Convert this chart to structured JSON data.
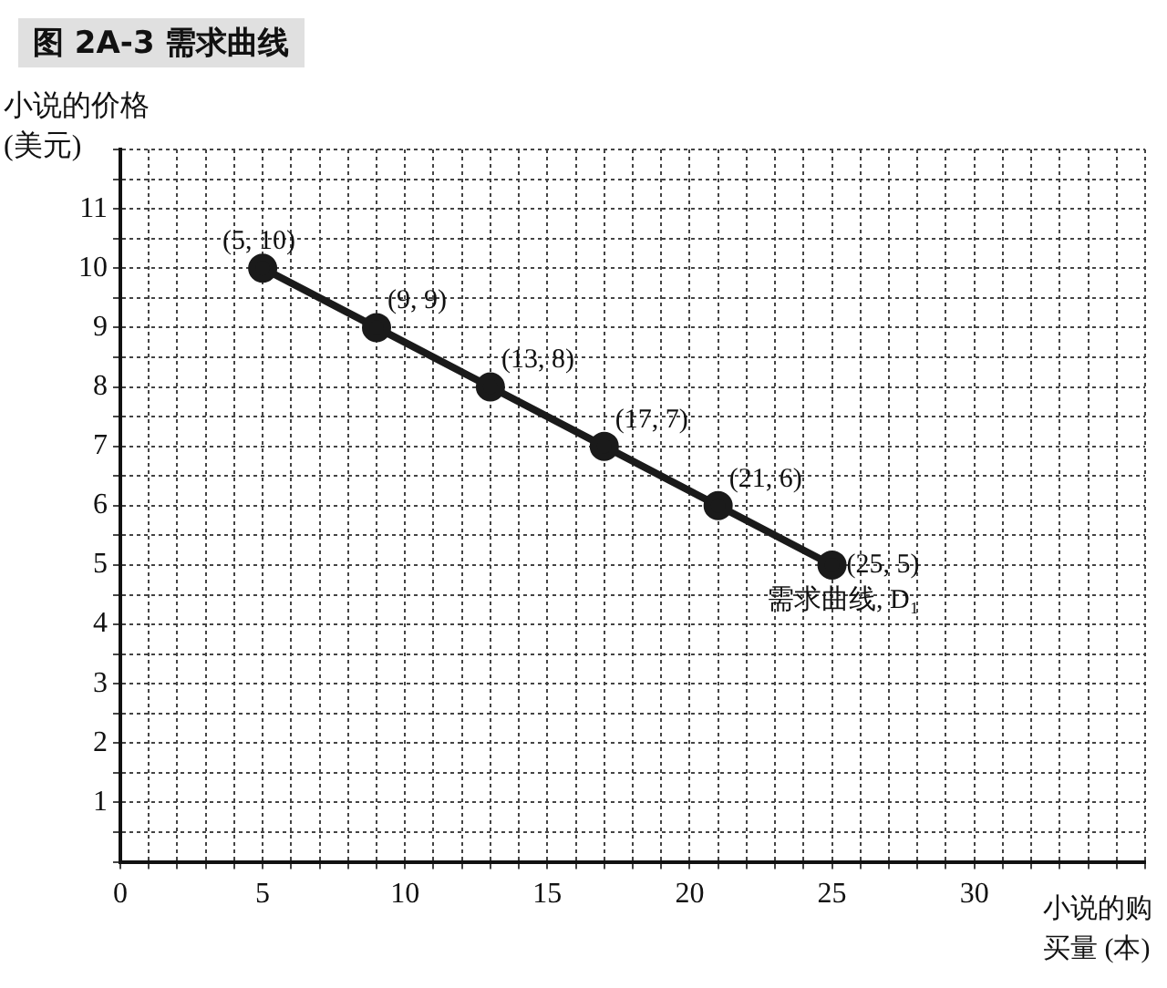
{
  "chart_data": {
    "type": "line",
    "title": "图 2A-3 需求曲线",
    "xlabel": "小说的购买量 (本)",
    "ylabel": "小说的价格 (美元)",
    "x": [
      5,
      9,
      13,
      17,
      21,
      25
    ],
    "series": [
      {
        "name": "需求曲线, D₁",
        "color": "#1a1a1a",
        "values": [
          10,
          9,
          8,
          7,
          6,
          5
        ],
        "value_labels": [
          "(5, 10)",
          "(9, 9)",
          "(13, 8)",
          "(17, 7)",
          "(21, 6)",
          "(25, 5)"
        ]
      }
    ],
    "xlim": [
      0,
      36
    ],
    "xticks": [
      0,
      {
        "value": 1,
        "label": null
      },
      {
        "value": 2,
        "label": null
      },
      {
        "value": 3,
        "label": null
      },
      {
        "value": 4,
        "label": null
      },
      5,
      {
        "value": 6,
        "label": null
      },
      {
        "value": 7,
        "label": null
      },
      {
        "value": 8,
        "label": null
      },
      {
        "value": 9,
        "label": null
      },
      10,
      {
        "value": 11,
        "label": null
      },
      {
        "value": 12,
        "label": null
      },
      {
        "value": 13,
        "label": null
      },
      {
        "value": 14,
        "label": null
      },
      15,
      {
        "value": 16,
        "label": null
      },
      {
        "value": 17,
        "label": null
      },
      {
        "value": 18,
        "label": null
      },
      {
        "value": 19,
        "label": null
      },
      20,
      {
        "value": 21,
        "label": null
      },
      {
        "value": 22,
        "label": null
      },
      {
        "value": 23,
        "label": null
      },
      {
        "value": 24,
        "label": null
      },
      25,
      {
        "value": 26,
        "label": null
      },
      {
        "value": 27,
        "label": null
      },
      {
        "value": 28,
        "label": null
      },
      {
        "value": 29,
        "label": null
      },
      30,
      {
        "value": 31,
        "label": null
      },
      {
        "value": 32,
        "label": null
      },
      {
        "value": 33,
        "label": null
      },
      {
        "value": 34,
        "label": null
      },
      {
        "value": 35,
        "label": null
      },
      {
        "value": 36,
        "label": null
      }
    ],
    "ylim": [
      0,
      12
    ],
    "yticks": [
      {
        "value": 0,
        "label": null
      },
      {
        "value": 0.5,
        "label": null
      },
      1,
      {
        "value": 1.5,
        "label": null
      },
      2,
      {
        "value": 2.5,
        "label": null
      },
      3,
      {
        "value": 3.5,
        "label": null
      },
      4,
      {
        "value": 4.5,
        "label": null
      },
      5,
      {
        "value": 5.5,
        "label": null
      },
      6,
      {
        "value": 6.5,
        "label": null
      },
      7,
      {
        "value": 7.5,
        "label": null
      },
      8,
      {
        "value": 8.5,
        "label": null
      },
      9,
      {
        "value": 9.5,
        "label": null
      },
      10,
      {
        "value": 10.5,
        "label": null
      },
      11,
      {
        "value": 11.5,
        "label": null
      },
      {
        "value": 12,
        "label": null
      }
    ],
    "grid": true,
    "marker": "circle",
    "line_style": "solid",
    "legend": false
  }
}
